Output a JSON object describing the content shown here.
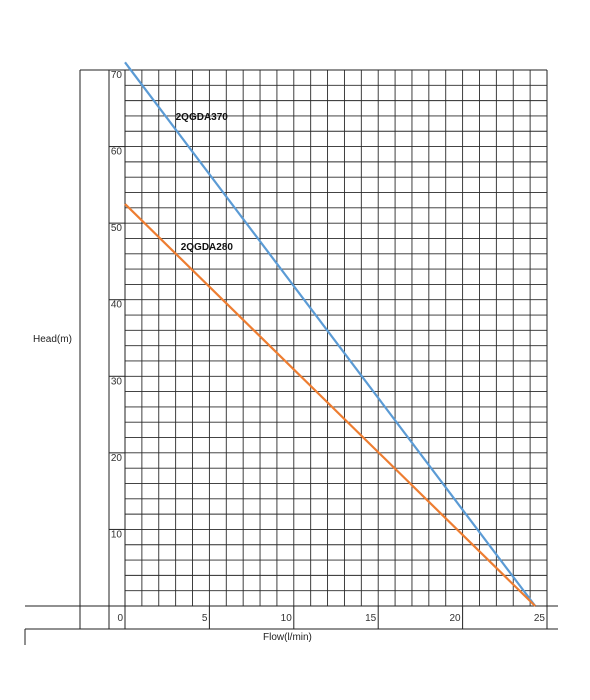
{
  "chart_data": {
    "type": "line",
    "xlabel": "Flow(l/min)",
    "ylabel": "Head(m)",
    "xlim": [
      0,
      25
    ],
    "ylim": [
      0,
      70
    ],
    "x_ticks": [
      0,
      5,
      10,
      15,
      20,
      25
    ],
    "y_ticks": [
      10,
      20,
      30,
      40,
      50,
      60,
      70
    ],
    "x_tick_labels": [
      "0",
      "5",
      "10",
      "15",
      "20",
      "25"
    ],
    "y_tick_labels": [
      "10",
      "20",
      "30",
      "40",
      "50",
      "60",
      "70"
    ],
    "grid": true,
    "series": [
      {
        "name": "2QGDA370",
        "color": "#5b9bd5",
        "x": [
          0,
          24.3
        ],
        "y": [
          71,
          0
        ],
        "label_at": [
          3,
          63.5
        ]
      },
      {
        "name": "2QGDA280",
        "color": "#ed7d31",
        "x": [
          0,
          24.3
        ],
        "y": [
          52.5,
          0
        ],
        "label_at": [
          3.3,
          46.5
        ]
      }
    ]
  }
}
